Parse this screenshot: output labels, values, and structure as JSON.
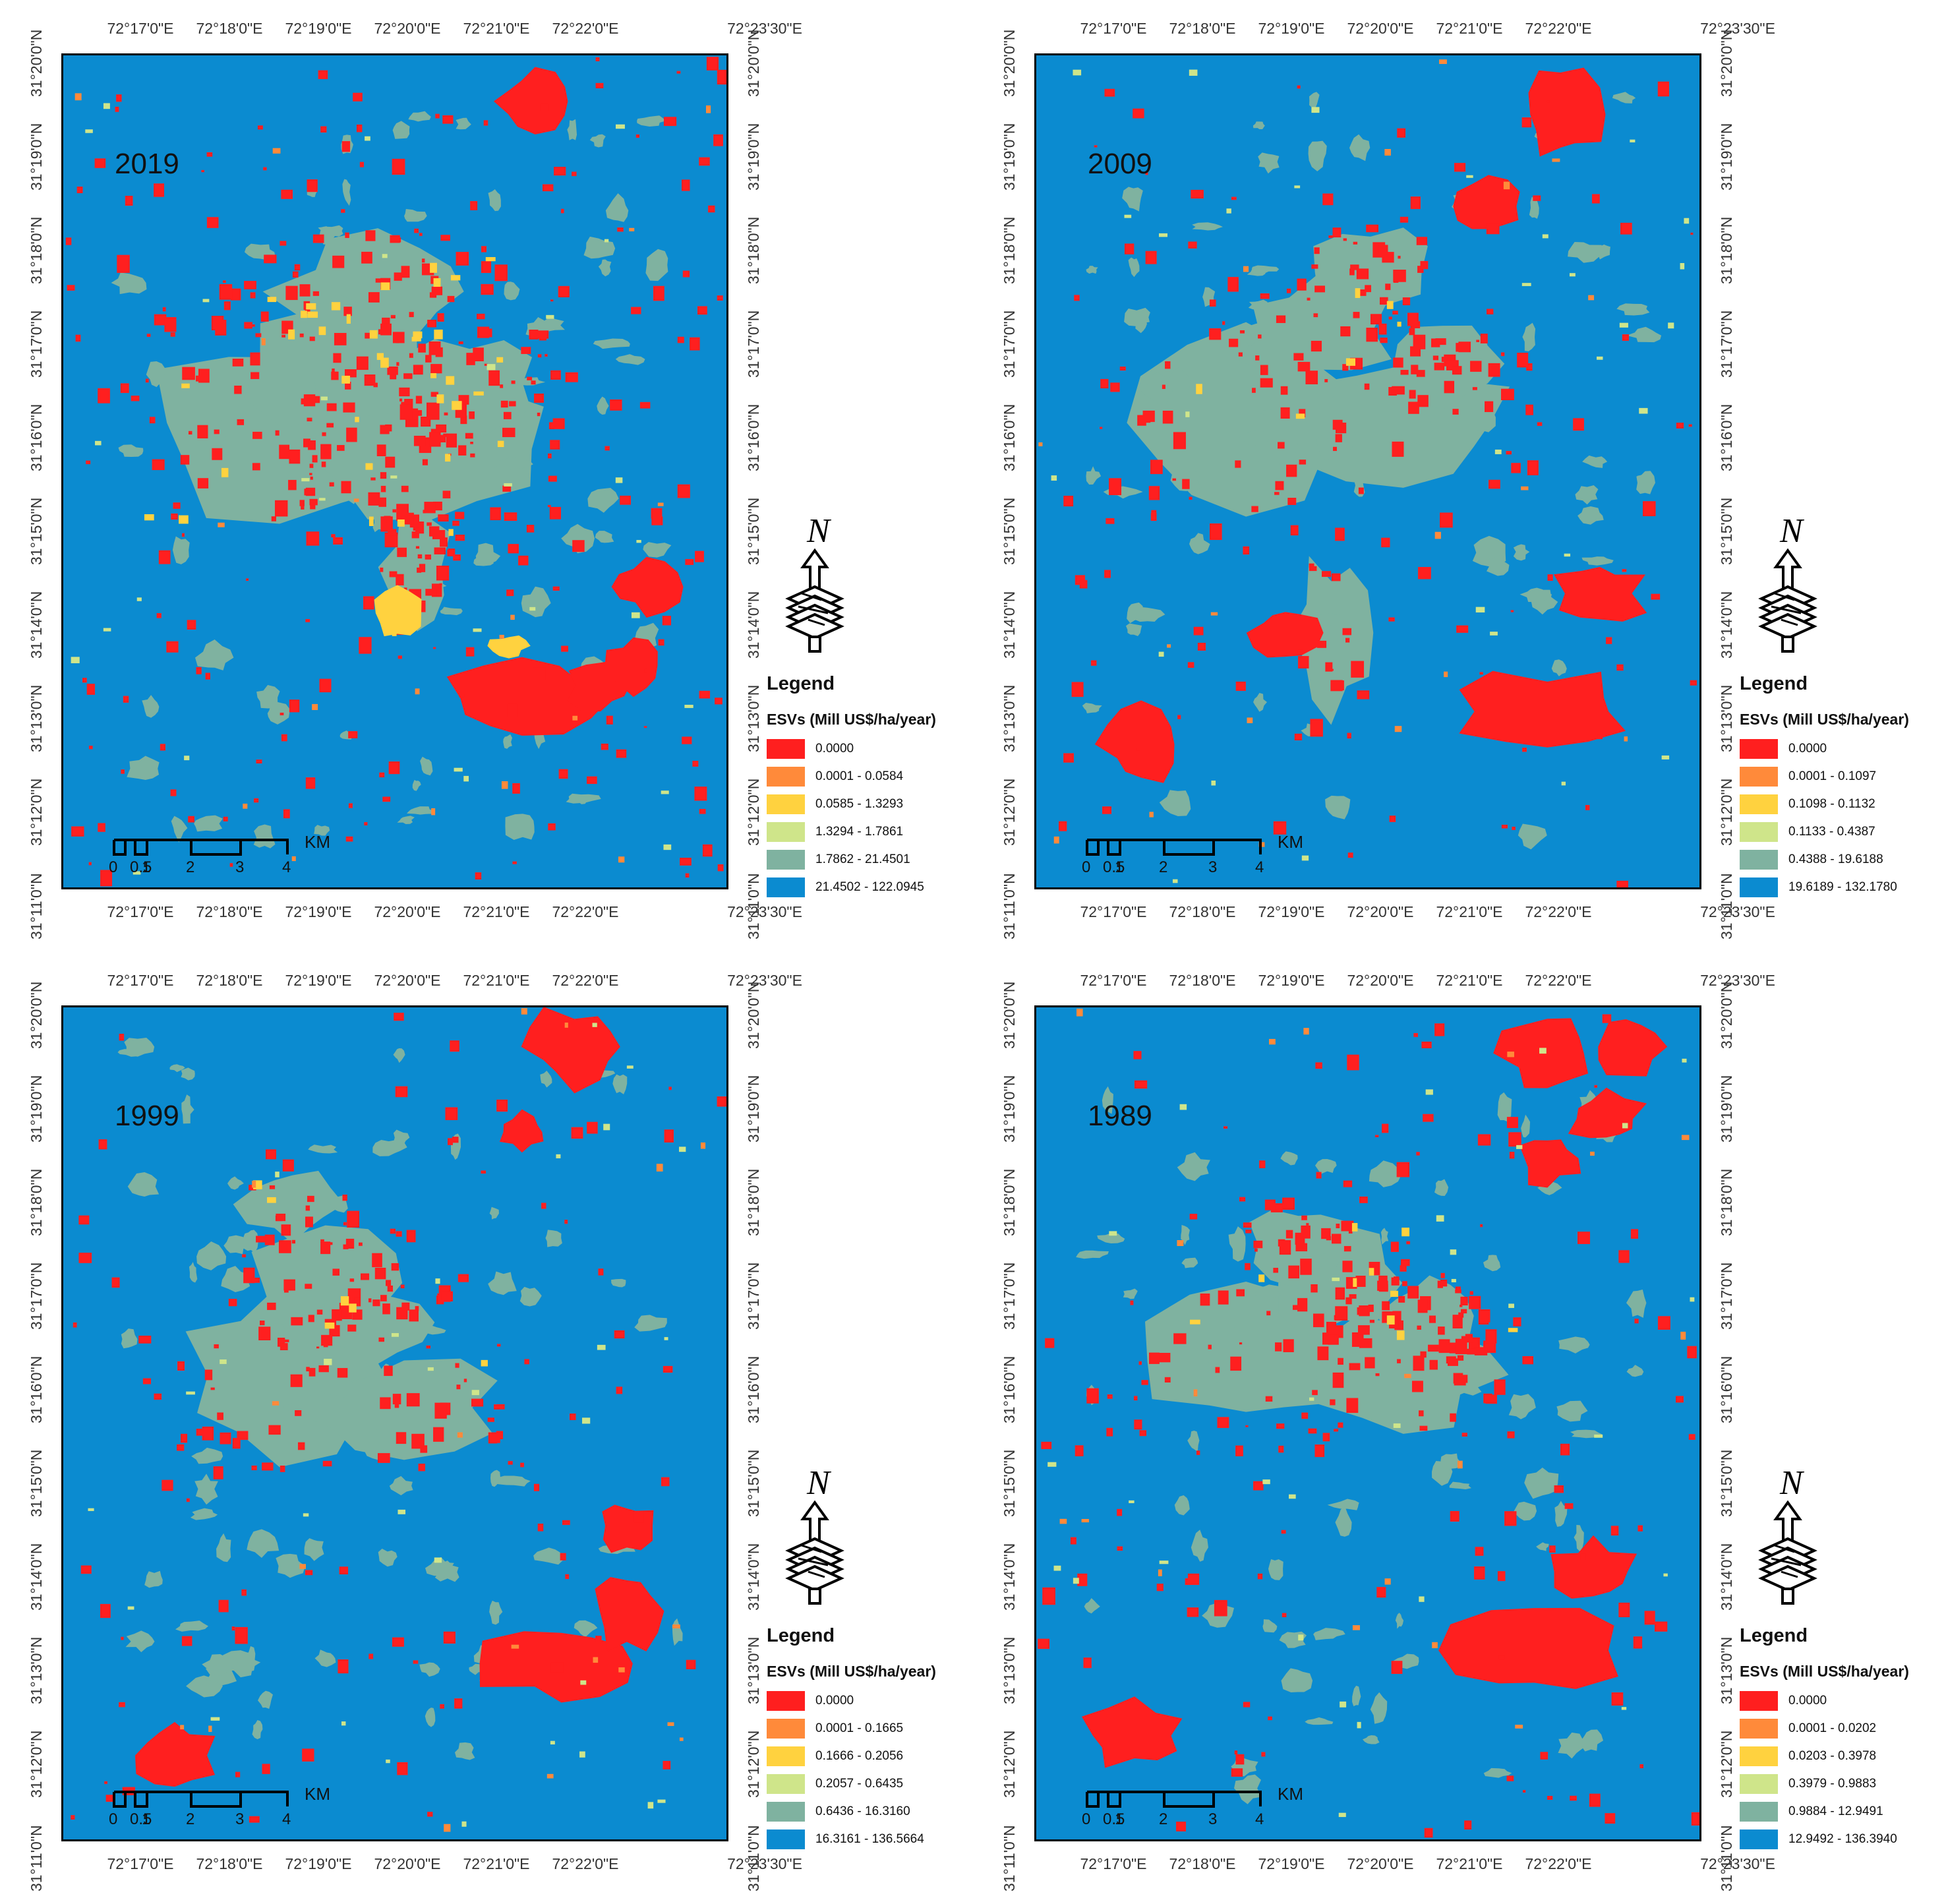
{
  "colors": {
    "class1": "#ff1f1f",
    "class2": "#ff8a3a",
    "class3": "#ffd23f",
    "class4": "#cfe58a",
    "class5": "#7fb2a0",
    "class6": "#0b8bd0"
  },
  "lon_labels": [
    "72°17'0\"E",
    "72°18'0\"E",
    "72°19'0\"E",
    "72°20'0\"E",
    "72°21'0\"E",
    "72°22'0\"E",
    "72°23'30\"E"
  ],
  "lat_labels": [
    "31°11'0\"N",
    "31°12'0\"N",
    "31°13'0\"N",
    "31°14'0\"N",
    "31°15'0\"N",
    "31°16'0\"N",
    "31°17'0\"N",
    "31°18'0\"N",
    "31°19'0\"N",
    "31°20'0\"N"
  ],
  "north_label": "N",
  "scale": {
    "ticks": [
      "0",
      "0.5",
      "1",
      "2",
      "3",
      "4"
    ],
    "unit": "KM"
  },
  "legend_title": "Legend",
  "legend_subtitle": "ESVs (Mill US$/ha/year)",
  "panels": [
    {
      "year": "2019",
      "classes": [
        "0.0000",
        "0.0001 - 0.0584",
        "0.0585 - 1.3293",
        "1.3294 - 1.7861",
        "1.7862 - 21.4501",
        "21.4502 - 122.0945"
      ]
    },
    {
      "year": "2009",
      "classes": [
        "0.0000",
        "0.0001 - 0.1097",
        "0.1098 - 0.1132",
        "0.1133 - 0.4387",
        "0.4388 - 19.6188",
        "19.6189 - 132.1780"
      ]
    },
    {
      "year": "1999",
      "classes": [
        "0.0000",
        "0.0001 - 0.1665",
        "0.1666 - 0.2056",
        "0.2057 - 0.6435",
        "0.6436 - 16.3160",
        "16.3161 - 136.5664"
      ]
    },
    {
      "year": "1989",
      "classes": [
        "0.0000",
        "0.0001 - 0.0202",
        "0.0203 - 0.3978",
        "0.3979 - 0.9883",
        "0.9884 - 12.9491",
        "12.9492 - 136.3940"
      ]
    }
  ]
}
